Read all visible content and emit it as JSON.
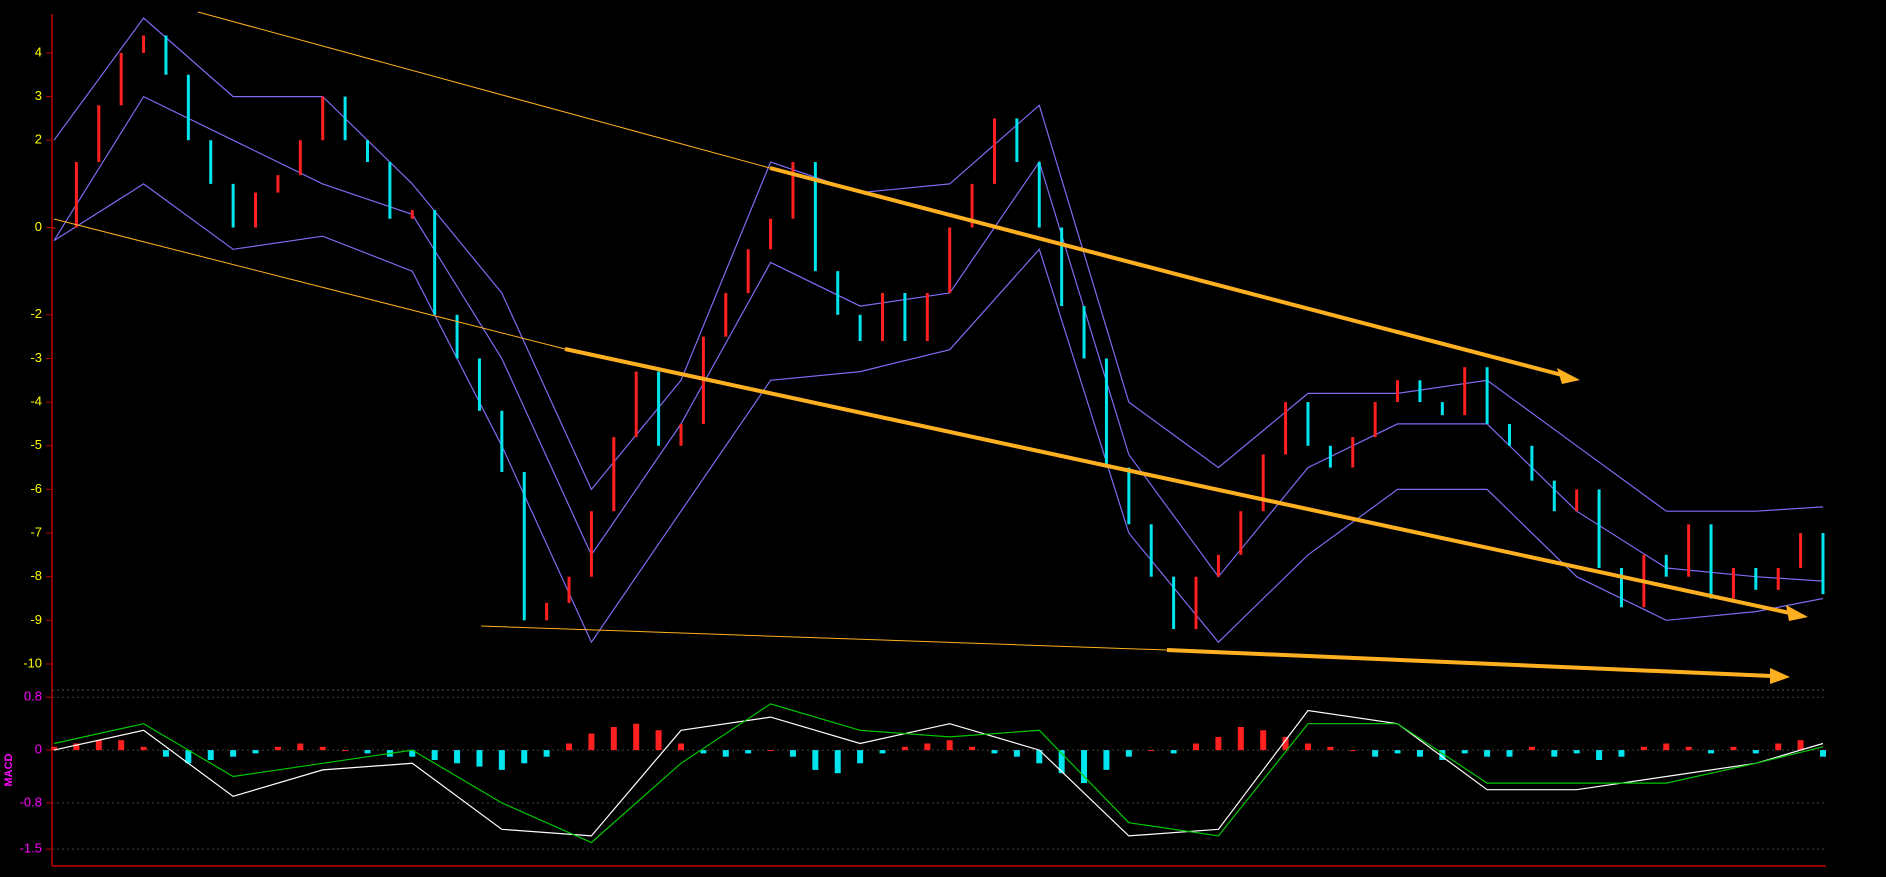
{
  "chart_data": [
    {
      "type": "renko",
      "up_color": "#ff2020",
      "down_color": "#00e5ee",
      "values": [
        0,
        1.5,
        2.8,
        4,
        4.4,
        3.5,
        2,
        1,
        0,
        0.8,
        1.2,
        2,
        3,
        2,
        1.5,
        0.2,
        0.4,
        -2,
        -3,
        -4.2,
        -5.6,
        -9,
        -8.6,
        -8,
        -6.5,
        -4.8,
        -3.3,
        -5,
        -4.5,
        -2.5,
        -1.5,
        -0.5,
        0.2,
        1.5,
        -1,
        -2,
        -2.6,
        -1.5,
        -2.6,
        -1.5,
        0,
        1,
        2.5,
        1.5,
        0,
        -1.8,
        -3,
        -5.5,
        -6.8,
        -8,
        -9.2,
        -8,
        -7.5,
        -6.5,
        -5.2,
        -4,
        -5,
        -5.5,
        -4.8,
        -4,
        -3.5,
        -4,
        -4.3,
        -3.2,
        -4.5,
        -5,
        -5.8,
        -6.5,
        -6,
        -7.8,
        -8.7,
        -7.5,
        -8,
        -6.8,
        -8.5,
        -7.8,
        -8.3,
        -7.8,
        -7,
        -8.4
      ],
      "series": [
        {
          "color": "#7b6cf0",
          "x": [
            0,
            4,
            8,
            12,
            16,
            20,
            24,
            28,
            32,
            36,
            40,
            44,
            48,
            52,
            56,
            60,
            64,
            68,
            72,
            76,
            79
          ],
          "values": [
            2,
            4.8,
            3,
            3,
            1,
            -1.5,
            -6,
            -3.5,
            1.5,
            0.8,
            1,
            2.8,
            -4,
            -5.5,
            -3.8,
            -3.8,
            -3.5,
            -5,
            -6.5,
            -6.5,
            -6.4
          ]
        },
        {
          "color": "#7b6cf0",
          "x": [
            0,
            4,
            8,
            12,
            16,
            20,
            24,
            28,
            32,
            36,
            40,
            44,
            48,
            52,
            56,
            60,
            64,
            68,
            72,
            76,
            79
          ],
          "values": [
            -0.3,
            3,
            2,
            1,
            0.3,
            -3,
            -7.5,
            -4.5,
            -0.8,
            -1.8,
            -1.5,
            1.5,
            -5.2,
            -8,
            -5.5,
            -4.5,
            -4.5,
            -6.5,
            -7.8,
            -8,
            -8.1
          ]
        },
        {
          "color": "#7b6cf0",
          "x": [
            0,
            4,
            8,
            12,
            16,
            20,
            24,
            28,
            32,
            36,
            40,
            44,
            48,
            52,
            56,
            60,
            64,
            68,
            72,
            76,
            79
          ],
          "values": [
            -0.3,
            1,
            -0.5,
            -0.2,
            -1,
            -5,
            -9.5,
            -6.5,
            -3.5,
            -3.3,
            -2.8,
            -0.5,
            -7,
            -9.5,
            -7.5,
            -6,
            -6,
            -8,
            -9,
            -8.8,
            -8.5
          ]
        }
      ],
      "xlim": [
        0,
        79
      ],
      "ylim": [
        -10.55,
        4.8
      ],
      "yticks": [
        4,
        3,
        2,
        0,
        -2,
        -3,
        -4,
        -5,
        -6,
        -7,
        -8,
        -9,
        -10
      ],
      "tick_color": "#ffff00"
    },
    {
      "type": "macd",
      "label": "MACD",
      "up_color": "#ff2020",
      "down_color": "#00e5ee",
      "values": [
        0.05,
        0.1,
        0.15,
        0.15,
        0.05,
        -0.1,
        -0.2,
        -0.15,
        -0.1,
        -0.05,
        0.05,
        0.1,
        0.05,
        0,
        -0.05,
        -0.1,
        -0.1,
        -0.15,
        -0.2,
        -0.25,
        -0.3,
        -0.2,
        -0.1,
        0.1,
        0.25,
        0.35,
        0.4,
        0.3,
        0.1,
        -0.05,
        -0.1,
        -0.05,
        0,
        -0.1,
        -0.3,
        -0.35,
        -0.2,
        -0.05,
        0.05,
        0.1,
        0.15,
        0.05,
        -0.05,
        -0.1,
        -0.2,
        -0.35,
        -0.5,
        -0.3,
        -0.1,
        0,
        -0.05,
        0.1,
        0.2,
        0.35,
        0.3,
        0.2,
        0.1,
        0.05,
        0,
        -0.1,
        -0.05,
        -0.1,
        -0.15,
        -0.05,
        -0.1,
        -0.1,
        0.05,
        -0.1,
        -0.05,
        -0.15,
        -0.1,
        0.05,
        0.1,
        0.05,
        -0.05,
        0.05,
        -0.05,
        0.1,
        0.15,
        -0.1
      ],
      "series": [
        {
          "color": "#ffffff",
          "x": [
            0,
            4,
            8,
            12,
            16,
            20,
            24,
            28,
            32,
            36,
            40,
            44,
            48,
            52,
            56,
            60,
            64,
            68,
            72,
            76,
            79
          ],
          "values": [
            0,
            0.3,
            -0.7,
            -0.3,
            -0.2,
            -1.2,
            -1.3,
            0.3,
            0.5,
            0.1,
            0.4,
            0,
            -1.3,
            -1.2,
            0.6,
            0.4,
            -0.6,
            -0.6,
            -0.4,
            -0.2,
            0.1
          ]
        },
        {
          "color": "#00c800",
          "x": [
            0,
            4,
            8,
            12,
            16,
            20,
            24,
            28,
            32,
            36,
            40,
            44,
            48,
            52,
            56,
            60,
            64,
            68,
            72,
            76,
            79
          ],
          "values": [
            0.1,
            0.4,
            -0.4,
            -0.2,
            0,
            -0.8,
            -1.4,
            -0.2,
            0.7,
            0.3,
            0.2,
            0.3,
            -1.1,
            -1.3,
            0.4,
            0.4,
            -0.5,
            -0.5,
            -0.5,
            -0.2,
            0.05
          ]
        }
      ],
      "xlim": [
        0,
        79
      ],
      "ylim": [
        -1.65,
        0.88
      ],
      "yticks": [
        0.8,
        0,
        -0.8,
        -1.5
      ],
      "tick_color": "#ff00ff",
      "grid": true
    }
  ]
}
